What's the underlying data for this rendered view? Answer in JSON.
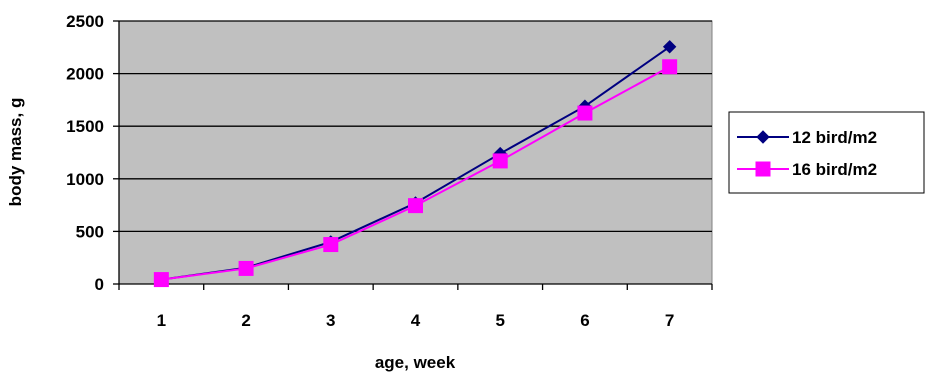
{
  "chart_data": {
    "type": "line",
    "xlabel": "age, week",
    "ylabel": "body mass, g",
    "categories": [
      "1",
      "2",
      "3",
      "4",
      "5",
      "6",
      "7"
    ],
    "ylim": [
      0,
      2500
    ],
    "yticks": [
      "0",
      "500",
      "1000",
      "1500",
      "2000",
      "2500"
    ],
    "grid": true,
    "legend_position": "right",
    "series": [
      {
        "name": "12 bird/m2",
        "color": "#000080",
        "marker": "diamond",
        "values": [
          42,
          155,
          400,
          770,
          1240,
          1690,
          2255
        ]
      },
      {
        "name": "16 bird/m2",
        "color": "#ff00ff",
        "marker": "square",
        "values": [
          42,
          148,
          375,
          745,
          1170,
          1625,
          2065
        ]
      }
    ],
    "plot_background": "#c0c0c0"
  }
}
